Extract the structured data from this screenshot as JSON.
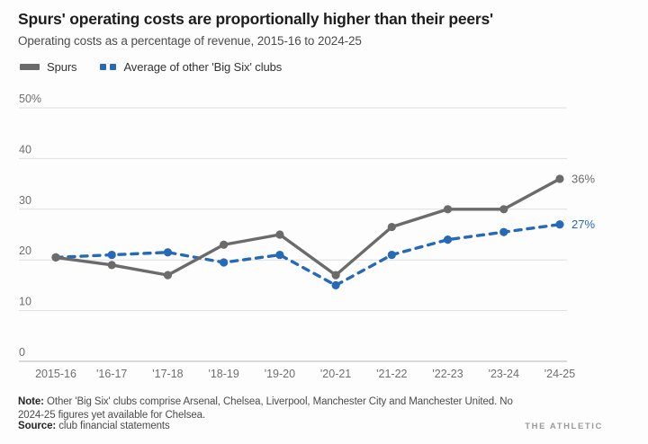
{
  "header": {
    "title": "Spurs' operating costs are proportionally higher than their peers'",
    "subtitle": "Operating costs as a percentage of revenue, 2015-16 to 2024-25"
  },
  "legend": {
    "items": [
      {
        "label": "Spurs",
        "color": "#6b6b6b",
        "style": "solid"
      },
      {
        "label": "Average of other 'Big Six' clubs",
        "color": "#2569b7",
        "style": "dashed"
      }
    ]
  },
  "chart_data": {
    "type": "line",
    "title": "Spurs' operating costs are proportionally higher than their peers'",
    "subtitle": "Operating costs as a percentage of revenue, 2015-16 to 2024-25",
    "categories": [
      "2015-16",
      "'16-17",
      "'17-18",
      "'18-19",
      "'19-20",
      "'20-21",
      "'21-22",
      "'22-23",
      "'23-24",
      "'24-25"
    ],
    "series": [
      {
        "name": "Spurs",
        "color": "#6b6b6b",
        "dashed": false,
        "values": [
          20.5,
          19,
          17,
          23,
          25,
          17,
          26.5,
          30,
          30,
          36
        ],
        "end_label": "36%"
      },
      {
        "name": "Average of other 'Big Six' clubs",
        "color": "#2569b7",
        "dashed": true,
        "values": [
          20.5,
          21,
          21.5,
          19.5,
          21,
          15,
          21,
          24,
          25.5,
          27
        ],
        "end_label": "27%"
      }
    ],
    "ylim": [
      0,
      50
    ],
    "y_ticks": [
      {
        "value": 0,
        "label": "0"
      },
      {
        "value": 10,
        "label": "10"
      },
      {
        "value": 20,
        "label": "20"
      },
      {
        "value": 30,
        "label": "30"
      },
      {
        "value": 40,
        "label": "40"
      },
      {
        "value": 50,
        "label": "50%"
      }
    ],
    "grid": true,
    "legend_position": "top",
    "xlabel": "",
    "ylabel": ""
  },
  "footer": {
    "note_label": "Note:",
    "note_text": "Other 'Big Six' clubs comprise Arsenal, Chelsea, Liverpool, Manchester City and Manchester United. No 2024-25 figures yet available for Chelsea.",
    "source_label": "Source:",
    "source_text": "club financial statements",
    "brand": "THE ATHLETIC"
  }
}
